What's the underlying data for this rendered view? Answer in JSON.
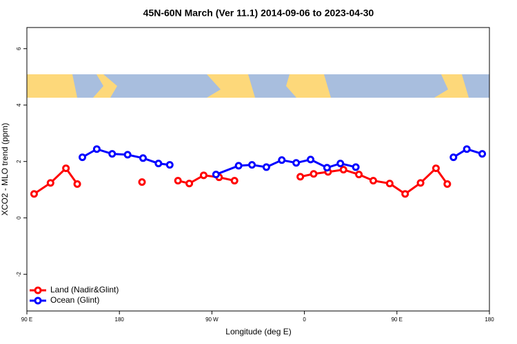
{
  "chart_data": {
    "type": "line",
    "title": "45N-60N March (Ver 11.1)   2014-09-06 to 2023-04-30",
    "x_label": "Longitude (deg E)",
    "y_label": "XCO2 - MLO trend (ppm)",
    "xlim": [
      90,
      540
    ],
    "ylim": [
      -3.3,
      6.75
    ],
    "xticks": [
      {
        "value": 90,
        "label": "90 E"
      },
      180,
      {
        "value": 270,
        "label": "90 W"
      },
      {
        "value": 360,
        "label": "0"
      },
      {
        "value": 450,
        "label": "90 E"
      },
      {
        "value": 540,
        "label": "180"
      }
    ],
    "yticks": [
      -2,
      0,
      2,
      4,
      6
    ],
    "legend": "bottom-left",
    "series": [
      {
        "name": "Land (Nadir&Glint)",
        "color": "#ff0000",
        "x": [
          97,
          113,
          128,
          139,
          null,
          202,
          null,
          237,
          248,
          262,
          277,
          292,
          null,
          356,
          369,
          383,
          398,
          413,
          427,
          443,
          458,
          473,
          488,
          499
        ],
        "values": [
          0.85,
          1.24,
          1.76,
          1.2,
          null,
          1.27,
          null,
          1.32,
          1.22,
          1.51,
          1.44,
          1.32,
          null,
          1.46,
          1.56,
          1.63,
          1.71,
          1.54,
          1.32,
          1.22,
          0.85,
          1.24,
          1.76,
          1.2
        ]
      },
      {
        "name": "Ocean (Glint)",
        "color": "#0000ff",
        "x": [
          144,
          158,
          173,
          188,
          203,
          218,
          229,
          null,
          274,
          296,
          309,
          323,
          338,
          352,
          366,
          382,
          395,
          410,
          null,
          505,
          518,
          533
        ],
        "values": [
          2.15,
          2.44,
          2.27,
          2.24,
          2.12,
          1.93,
          1.88,
          null,
          1.54,
          1.85,
          1.88,
          1.8,
          2.05,
          1.95,
          2.07,
          1.78,
          1.93,
          1.8,
          null,
          2.15,
          2.44,
          2.27
        ]
      }
    ]
  }
}
